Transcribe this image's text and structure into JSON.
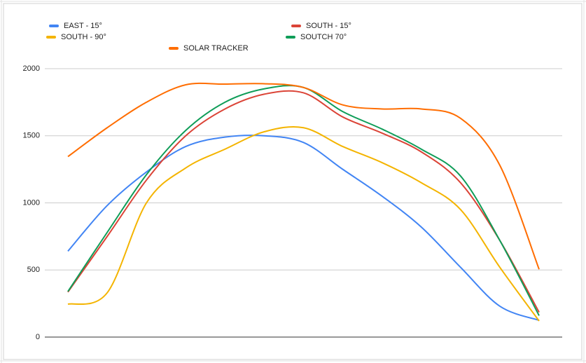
{
  "chart_data": {
    "type": "line",
    "categories": [
      null,
      null,
      null,
      null,
      null,
      null,
      null,
      null,
      null,
      null,
      null,
      null,
      null
    ],
    "series": [
      {
        "name": "EAST - 15°",
        "color": "#4285f4",
        "values": [
          640,
          980,
          1230,
          1420,
          1490,
          1500,
          1450,
          1250,
          1050,
          820,
          520,
          230,
          125
        ]
      },
      {
        "name": "SOUTH - 15°",
        "color": "#db4437",
        "values": [
          335,
          750,
          1170,
          1500,
          1700,
          1810,
          1820,
          1640,
          1520,
          1380,
          1150,
          720,
          185
        ]
      },
      {
        "name": "SOUTH - 90°",
        "color": "#f4b400",
        "values": [
          245,
          330,
          1000,
          1260,
          1400,
          1530,
          1560,
          1420,
          1300,
          1150,
          950,
          520,
          120
        ]
      },
      {
        "name": "SOUTCH 70°",
        "color": "#0f9d58",
        "values": [
          340,
          780,
          1210,
          1540,
          1750,
          1850,
          1860,
          1680,
          1550,
          1400,
          1200,
          720,
          160
        ]
      },
      {
        "name": "SOLAR TRACKER",
        "color": "#ff6d01",
        "values": [
          1345,
          1560,
          1750,
          1880,
          1885,
          1888,
          1860,
          1730,
          1700,
          1700,
          1630,
          1280,
          505
        ]
      }
    ],
    "ylim": [
      0,
      2000
    ],
    "yticks": [
      0,
      500,
      1000,
      1500,
      2000
    ],
    "grid": true
  }
}
